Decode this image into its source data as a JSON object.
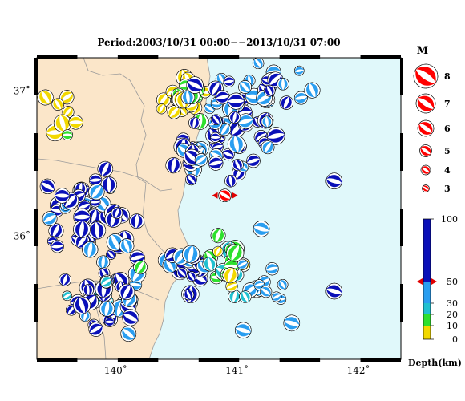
{
  "title": "Period:2003/10/31 00:00−−2013/10/31 07:00",
  "lon_labels": [
    {
      "lon": 140,
      "text": "140˚"
    },
    {
      "lon": 141,
      "text": "141˚"
    },
    {
      "lon": 142,
      "text": "142˚"
    }
  ],
  "lat_labels": [
    {
      "lat": 37,
      "text": "37˚"
    },
    {
      "lat": 36,
      "text": "36˚"
    }
  ],
  "extent": {
    "lon_min": 139.35,
    "lon_max": 142.35,
    "lat_min": 35.15,
    "lat_max": 37.23
  },
  "colors": {
    "land": "#fbe6c9",
    "sea": "#e0f8fa",
    "border": "#9a9a9a",
    "depth_0_10": "#f2d800",
    "depth_10_20": "#2ee02e",
    "depth_20_30": "#20c0d0",
    "depth_30_50": "#2a9ef0",
    "depth_50_100": "#0a10b8",
    "main_event": "#ff0000"
  },
  "magnitude_legend": {
    "title": "M",
    "items": [
      "8",
      "7",
      "6",
      "5",
      "4",
      "3"
    ],
    "values": [
      8,
      7,
      6,
      5,
      4,
      3
    ]
  },
  "depth_legend": {
    "title": "Depth(km)",
    "ticks": [
      "100",
      "50",
      "30",
      "20",
      "10",
      "0"
    ],
    "values": [
      100,
      50,
      30,
      20,
      10,
      0
    ]
  },
  "main_event": {
    "lon": 140.9,
    "lat": 36.28,
    "depth": 45
  }
}
